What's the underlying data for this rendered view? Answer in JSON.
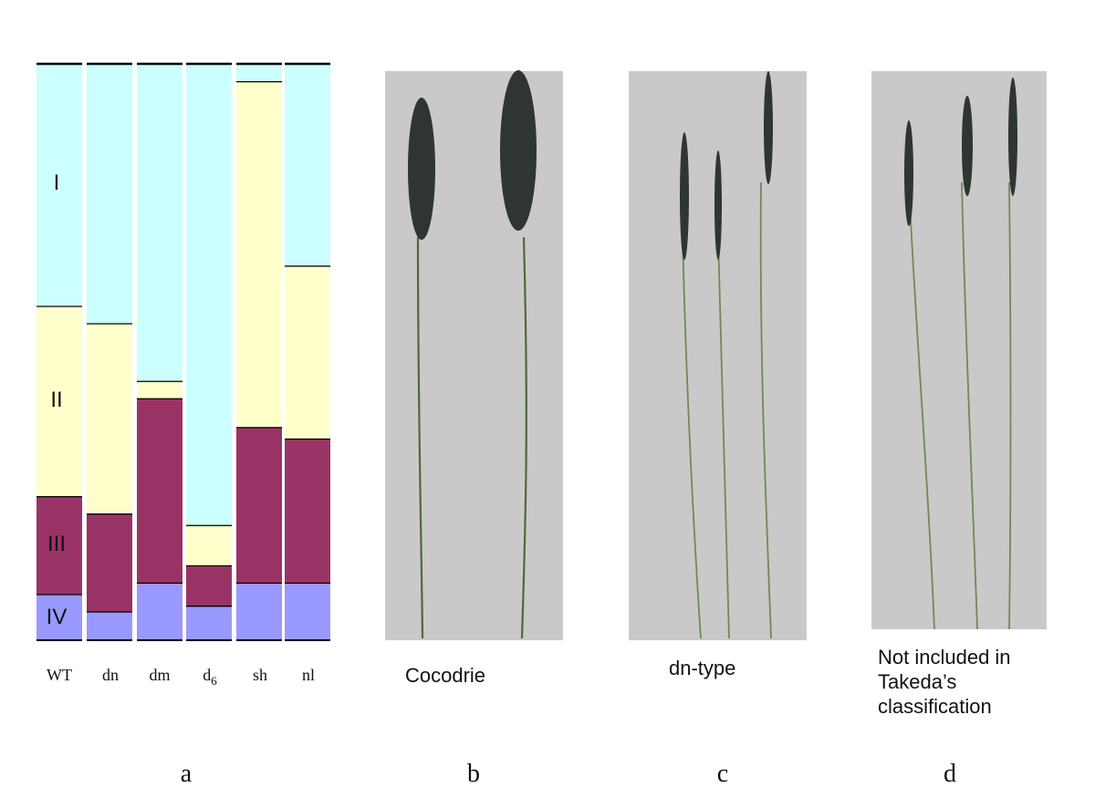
{
  "chart_data": {
    "type": "bar",
    "stacked": true,
    "orientation": "vertical",
    "categories": [
      "WT",
      "dn",
      "dm",
      "d6",
      "sh",
      "nl"
    ],
    "segments_bottom_to_top": [
      "IV",
      "III",
      "II",
      "I"
    ],
    "series": [
      {
        "name": "IV",
        "values": [
          0.08,
          0.05,
          0.1,
          0.06,
          0.1,
          0.1
        ]
      },
      {
        "name": "III",
        "values": [
          0.17,
          0.17,
          0.32,
          0.07,
          0.27,
          0.25
        ]
      },
      {
        "name": "II",
        "values": [
          0.33,
          0.33,
          0.03,
          0.07,
          0.6,
          0.3
        ]
      },
      {
        "name": "I",
        "values": [
          0.42,
          0.45,
          0.55,
          0.8,
          0.03,
          0.35
        ]
      }
    ],
    "segment_labels": [
      "I",
      "II",
      "III",
      "IV"
    ],
    "ylim": [
      0,
      1
    ]
  },
  "colors": {
    "I": "#ccffff",
    "II": "#ffffcc",
    "III": "#993366",
    "IV": "#9999ff",
    "photo_bg": "#c9c9c9",
    "stem": "#4d6a3a",
    "panicle": "#2f3530"
  },
  "panels": [
    {
      "letter": "a",
      "caption": ""
    },
    {
      "letter": "b",
      "caption": "Cocodrie"
    },
    {
      "letter": "c",
      "caption": "dn-type"
    },
    {
      "letter": "d",
      "caption_lines": [
        "Not included in",
        "Takeda’s",
        "classification"
      ]
    }
  ]
}
